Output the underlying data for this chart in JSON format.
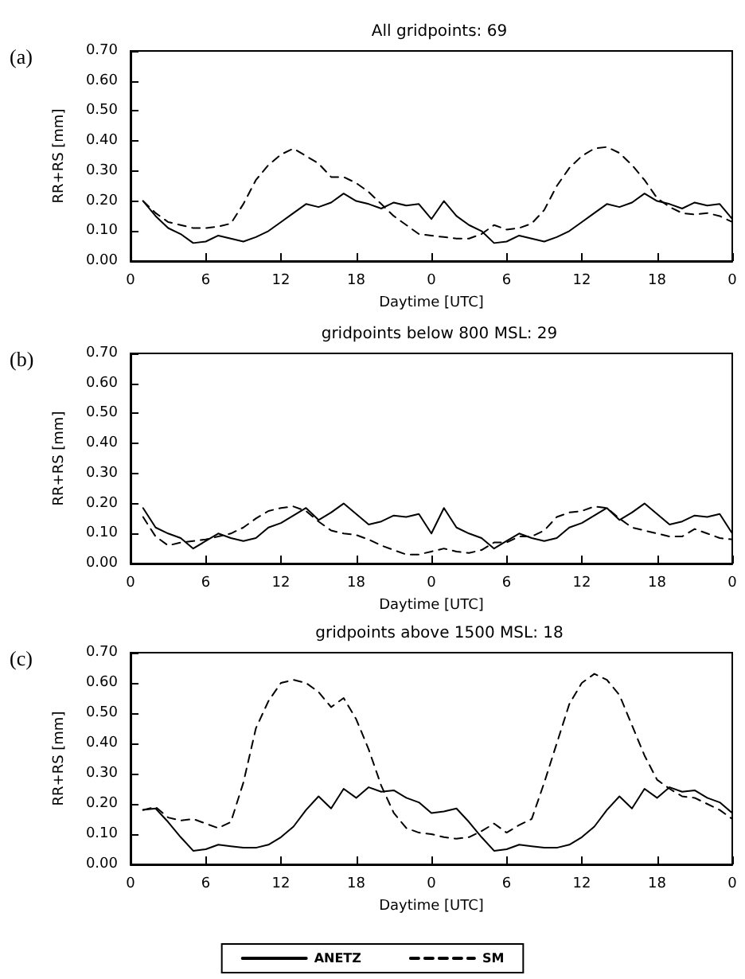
{
  "chart_data": [
    {
      "type": "line",
      "title": "All gridpoints: 69",
      "xlabel": "Daytime [UTC]",
      "ylabel": "RR+RS [mm]",
      "annotations": [
        "(a)"
      ],
      "legend": false,
      "grid": false,
      "marker": "none",
      "categories": [
        "0",
        null,
        null,
        null,
        null,
        null,
        "6",
        null,
        null,
        null,
        null,
        null,
        "12",
        null,
        null,
        null,
        null,
        null,
        "18",
        null,
        null,
        null,
        null,
        null,
        "0",
        null,
        null,
        null,
        null,
        null,
        "6",
        null,
        null,
        null,
        null,
        null,
        "12",
        null,
        null,
        null,
        null,
        null,
        "18",
        null,
        null,
        null,
        null,
        null,
        "0"
      ],
      "ylim": [
        0,
        0.7
      ],
      "yticks": [
        {
          "value": 0,
          "label": "0.00"
        },
        {
          "value": 0.1,
          "label": "0.10"
        },
        {
          "value": 0.2,
          "label": "0.20"
        },
        {
          "value": 0.3,
          "label": "0.30"
        },
        {
          "value": 0.4,
          "label": "0.40"
        },
        {
          "value": 0.5,
          "label": "0.50"
        },
        {
          "value": 0.6,
          "label": "0.60"
        },
        {
          "value": 0.7,
          "label": "0.70"
        }
      ],
      "series": [
        {
          "color": "#000000",
          "line_style": "solid",
          "values": [
            null,
            0.2,
            0.15,
            0.11,
            0.09,
            0.06,
            0.065,
            0.085,
            0.075,
            0.065,
            0.08,
            0.1,
            0.13,
            0.16,
            0.19,
            0.18,
            0.195,
            0.225,
            0.2,
            0.19,
            0.175,
            0.195,
            0.185,
            0.19,
            0.14,
            0.2,
            0.15,
            0.12,
            0.1,
            0.06,
            0.065,
            0.085,
            0.075,
            0.065,
            0.08,
            0.1,
            0.13,
            0.16,
            0.19,
            0.18,
            0.195,
            0.225,
            0.2,
            0.19,
            0.175,
            0.195,
            0.185,
            0.19,
            0.14
          ]
        },
        {
          "color": "#000000",
          "line_style": "dashed",
          "values": [
            null,
            0.2,
            0.16,
            0.13,
            0.12,
            0.11,
            0.11,
            0.115,
            0.125,
            0.19,
            0.27,
            0.32,
            0.355,
            0.375,
            0.35,
            0.325,
            0.28,
            0.28,
            0.26,
            0.23,
            0.19,
            0.15,
            0.12,
            0.09,
            0.085,
            0.08,
            0.075,
            0.075,
            0.09,
            0.12,
            0.105,
            0.11,
            0.125,
            0.17,
            0.25,
            0.31,
            0.35,
            0.375,
            0.38,
            0.36,
            0.32,
            0.27,
            0.21,
            0.18,
            0.16,
            0.155,
            0.16,
            0.15,
            0.13
          ]
        }
      ]
    },
    {
      "type": "line",
      "title": "gridpoints below 800 MSL: 29",
      "xlabel": "Daytime [UTC]",
      "ylabel": "RR+RS [mm]",
      "annotations": [
        "(b)"
      ],
      "legend": false,
      "grid": false,
      "marker": "none",
      "categories": [
        "0",
        null,
        null,
        null,
        null,
        null,
        "6",
        null,
        null,
        null,
        null,
        null,
        "12",
        null,
        null,
        null,
        null,
        null,
        "18",
        null,
        null,
        null,
        null,
        null,
        "0",
        null,
        null,
        null,
        null,
        null,
        "6",
        null,
        null,
        null,
        null,
        null,
        "12",
        null,
        null,
        null,
        null,
        null,
        "18",
        null,
        null,
        null,
        null,
        null,
        "0"
      ],
      "ylim": [
        0,
        0.7
      ],
      "yticks": [
        {
          "value": 0,
          "label": "0.00"
        },
        {
          "value": 0.1,
          "label": "0.10"
        },
        {
          "value": 0.2,
          "label": "0.20"
        },
        {
          "value": 0.3,
          "label": "0.30"
        },
        {
          "value": 0.4,
          "label": "0.40"
        },
        {
          "value": 0.5,
          "label": "0.50"
        },
        {
          "value": 0.6,
          "label": "0.60"
        },
        {
          "value": 0.7,
          "label": "0.70"
        }
      ],
      "series": [
        {
          "color": "#000000",
          "line_style": "solid",
          "values": [
            null,
            0.185,
            0.12,
            0.1,
            0.085,
            0.05,
            0.075,
            0.1,
            0.085,
            0.075,
            0.085,
            0.12,
            0.135,
            0.16,
            0.185,
            0.145,
            0.17,
            0.2,
            0.165,
            0.13,
            0.14,
            0.16,
            0.155,
            0.165,
            0.1,
            0.185,
            0.12,
            0.1,
            0.085,
            0.05,
            0.075,
            0.1,
            0.085,
            0.075,
            0.085,
            0.12,
            0.135,
            0.16,
            0.185,
            0.145,
            0.17,
            0.2,
            0.165,
            0.13,
            0.14,
            0.16,
            0.155,
            0.165,
            0.1
          ]
        },
        {
          "color": "#000000",
          "line_style": "dashed",
          "values": [
            null,
            0.155,
            0.09,
            0.06,
            0.07,
            0.075,
            0.08,
            0.09,
            0.1,
            0.12,
            0.15,
            0.175,
            0.185,
            0.19,
            0.175,
            0.14,
            0.11,
            0.1,
            0.095,
            0.08,
            0.06,
            0.045,
            0.03,
            0.03,
            0.04,
            0.05,
            0.04,
            0.035,
            0.045,
            0.07,
            0.07,
            0.09,
            0.09,
            0.11,
            0.155,
            0.17,
            0.175,
            0.19,
            0.185,
            0.15,
            0.12,
            0.11,
            0.1,
            0.09,
            0.09,
            0.115,
            0.1,
            0.085,
            0.08
          ]
        }
      ]
    },
    {
      "type": "line",
      "title": "gridpoints above 1500 MSL: 18",
      "xlabel": "Daytime [UTC]",
      "ylabel": "RR+RS [mm]",
      "annotations": [
        "(c)"
      ],
      "legend": "bottom",
      "grid": false,
      "marker": "none",
      "categories": [
        "0",
        null,
        null,
        null,
        null,
        null,
        "6",
        null,
        null,
        null,
        null,
        null,
        "12",
        null,
        null,
        null,
        null,
        null,
        "18",
        null,
        null,
        null,
        null,
        null,
        "0",
        null,
        null,
        null,
        null,
        null,
        "6",
        null,
        null,
        null,
        null,
        null,
        "12",
        null,
        null,
        null,
        null,
        null,
        "18",
        null,
        null,
        null,
        null,
        null,
        "0"
      ],
      "ylim": [
        0,
        0.7
      ],
      "yticks": [
        {
          "value": 0,
          "label": "0.00"
        },
        {
          "value": 0.1,
          "label": "0.10"
        },
        {
          "value": 0.2,
          "label": "0.20"
        },
        {
          "value": 0.3,
          "label": "0.30"
        },
        {
          "value": 0.4,
          "label": "0.40"
        },
        {
          "value": 0.5,
          "label": "0.50"
        },
        {
          "value": 0.6,
          "label": "0.60"
        },
        {
          "value": 0.7,
          "label": "0.70"
        }
      ],
      "series": [
        {
          "name": "ANETZ",
          "color": "#000000",
          "line_style": "solid",
          "values": [
            null,
            0.18,
            0.185,
            0.14,
            0.09,
            0.045,
            0.05,
            0.065,
            0.06,
            0.055,
            0.055,
            0.065,
            0.09,
            0.125,
            0.18,
            0.225,
            0.185,
            0.25,
            0.22,
            0.255,
            0.24,
            0.245,
            0.22,
            0.205,
            0.17,
            0.175,
            0.185,
            0.14,
            0.09,
            0.045,
            0.05,
            0.065,
            0.06,
            0.055,
            0.055,
            0.065,
            0.09,
            0.125,
            0.18,
            0.225,
            0.185,
            0.25,
            0.22,
            0.255,
            0.24,
            0.245,
            0.22,
            0.205,
            0.17
          ]
        },
        {
          "name": "SM",
          "color": "#000000",
          "line_style": "dashed",
          "values": [
            null,
            0.18,
            0.19,
            0.155,
            0.145,
            0.15,
            0.135,
            0.12,
            0.14,
            0.27,
            0.45,
            0.54,
            0.6,
            0.61,
            0.6,
            0.57,
            0.52,
            0.55,
            0.48,
            0.38,
            0.26,
            0.17,
            0.12,
            0.105,
            0.1,
            0.09,
            0.085,
            0.09,
            0.11,
            0.135,
            0.105,
            0.13,
            0.15,
            0.27,
            0.4,
            0.53,
            0.6,
            0.63,
            0.61,
            0.56,
            0.46,
            0.36,
            0.28,
            0.25,
            0.225,
            0.22,
            0.2,
            0.18,
            0.15
          ]
        }
      ]
    }
  ]
}
